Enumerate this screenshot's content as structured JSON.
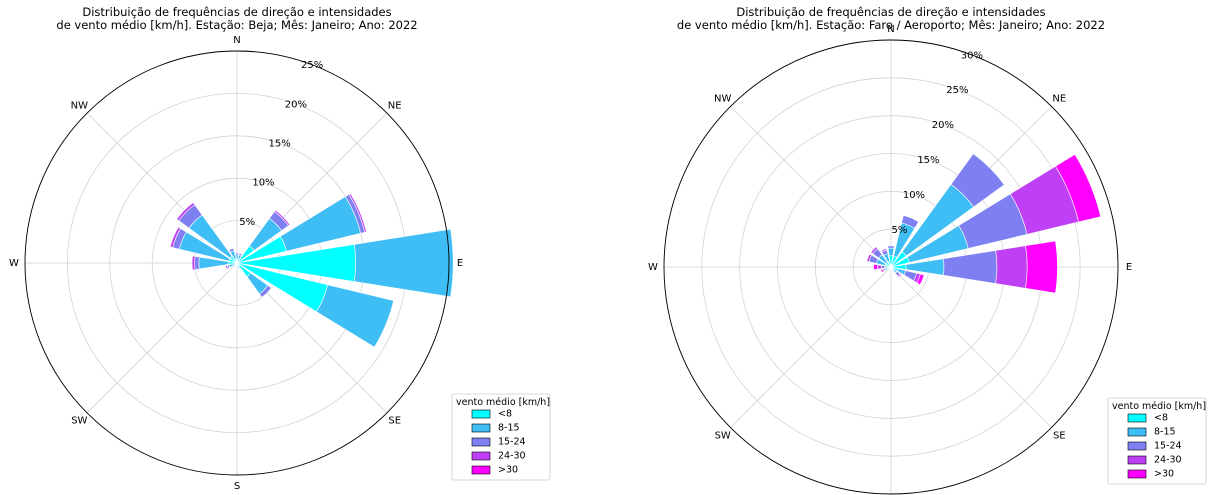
{
  "chart_data": [
    {
      "type": "windrose",
      "title_line1": "Distribuição de frequências de direção e intensidades",
      "title_line2": "de vento médio [km/h]. Estação: Beja; Mês: Janeiro; Ano: 2022",
      "directions": [
        "N",
        "NNE",
        "NE",
        "ENE",
        "E",
        "ESE",
        "SE",
        "SSE",
        "S",
        "SSW",
        "SW",
        "WSW",
        "W",
        "WNW",
        "NW",
        "NNW"
      ],
      "direction_labels": [
        "N",
        "NE",
        "E",
        "SE",
        "S",
        "SW",
        "W",
        "NW"
      ],
      "radial_ticks": [
        5,
        10,
        15,
        20,
        25
      ],
      "radial_tick_labels": [
        "5%",
        "10%",
        "15%",
        "20%",
        "25%"
      ],
      "rmax": 25,
      "legend_title": "vento médio [km/h]",
      "series": [
        {
          "name": "<8",
          "color": "#00ffff",
          "values": [
            0.5,
            0.5,
            2.5,
            6.0,
            14.0,
            11.0,
            2.0,
            0.5,
            0.3,
            0.3,
            0.4,
            0.5,
            1.0,
            1.0,
            1.0,
            0.5
          ]
        },
        {
          "name": "8-15",
          "color": "#3fbdf5",
          "values": [
            0.5,
            0.5,
            4.0,
            9.0,
            11.5,
            8.0,
            2.5,
            0.2,
            0.1,
            0.1,
            0.2,
            0.5,
            3.5,
            6.0,
            6.0,
            1.0
          ]
        },
        {
          "name": "15-24",
          "color": "#7e80f2",
          "values": [
            0.2,
            0.2,
            1.0,
            0.5,
            0.0,
            0.0,
            0.5,
            0.0,
            0.0,
            0.0,
            0.0,
            0.2,
            0.5,
            0.8,
            1.5,
            0.3
          ]
        },
        {
          "name": "24-30",
          "color": "#bf3ff5",
          "values": [
            0.0,
            0.0,
            0.2,
            0.2,
            0.0,
            0.0,
            0.0,
            0.0,
            0.0,
            0.0,
            0.0,
            0.2,
            0.3,
            0.3,
            0.3,
            0.0
          ]
        },
        {
          "name": ">30",
          "color": "#ff00ff",
          "values": [
            0.0,
            0.0,
            0.0,
            0.0,
            0.0,
            0.0,
            0.0,
            0.0,
            0.0,
            0.0,
            0.0,
            0.0,
            0.0,
            0.0,
            0.0,
            0.0
          ]
        }
      ]
    },
    {
      "type": "windrose",
      "title_line1": "Distribuição de frequências de direção e intensidades",
      "title_line2": "de vento médio [km/h]. Estação: Faro / Aeroporto; Mês: Janeiro; Ano: 2022",
      "directions": [
        "N",
        "NNE",
        "NE",
        "ENE",
        "E",
        "ESE",
        "SE",
        "SSE",
        "S",
        "SSW",
        "SW",
        "WSW",
        "W",
        "WNW",
        "NW",
        "NNW"
      ],
      "direction_labels": [
        "N",
        "NE",
        "E",
        "SE",
        "S",
        "SW",
        "W",
        "NW"
      ],
      "radial_ticks": [
        5,
        10,
        15,
        20,
        25,
        30
      ],
      "radial_tick_labels": [
        "5%",
        "10%",
        "15%",
        "20%",
        "25%",
        "30%"
      ],
      "rmax": 30,
      "legend_title": "vento médio [km/h]",
      "series": [
        {
          "name": "<8",
          "color": "#00ffff",
          "values": [
            1.5,
            1.5,
            2.5,
            2.5,
            2.0,
            1.0,
            0.5,
            0.3,
            0.3,
            0.3,
            0.3,
            0.5,
            0.5,
            0.8,
            0.8,
            0.8
          ]
        },
        {
          "name": "8-15",
          "color": "#3fbdf5",
          "values": [
            1.0,
            4.5,
            11.0,
            8.0,
            5.0,
            1.0,
            0.5,
            0.2,
            0.1,
            0.1,
            0.1,
            0.3,
            0.3,
            1.2,
            1.2,
            1.0
          ]
        },
        {
          "name": "15-24",
          "color": "#7e80f2",
          "values": [
            0.3,
            1.0,
            5.0,
            8.0,
            7.0,
            1.5,
            0.5,
            0.1,
            0.0,
            0.0,
            0.0,
            0.2,
            0.5,
            1.0,
            1.0,
            0.5
          ]
        },
        {
          "name": "24-30",
          "color": "#bf3ff5",
          "values": [
            0.0,
            0.0,
            0.0,
            7.0,
            4.0,
            0.5,
            0.2,
            0.0,
            0.0,
            0.0,
            0.0,
            0.2,
            0.5,
            0.3,
            0.3,
            0.2
          ]
        },
        {
          "name": ">30",
          "color": "#ff00ff",
          "values": [
            0.0,
            0.0,
            0.0,
            3.0,
            4.0,
            0.5,
            0.0,
            0.0,
            0.0,
            0.0,
            0.0,
            0.2,
            0.5,
            0.0,
            0.0,
            0.0
          ]
        }
      ]
    }
  ]
}
